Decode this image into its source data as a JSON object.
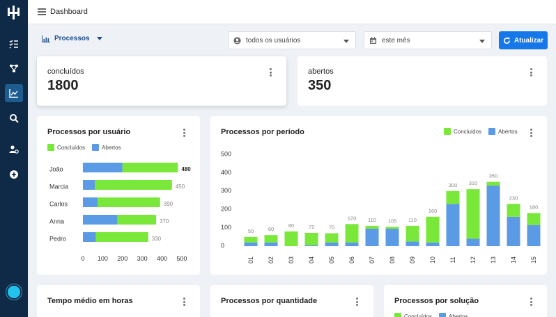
{
  "topbar": {
    "title": "Dashboard"
  },
  "filters": {
    "process_select": "Processos",
    "users_dropdown": "todos os usuários",
    "period_dropdown": "este mês",
    "refresh_label": "Atualizar"
  },
  "stats": [
    {
      "label": "concluídos",
      "value": "1800"
    },
    {
      "label": "abertos",
      "value": "350"
    }
  ],
  "legend": {
    "done": "Concluídos",
    "open": "Abertos"
  },
  "colors": {
    "done": "#79e83a",
    "open": "#5b9be6",
    "accent": "#1577e8",
    "sidebar": "#0e2a47"
  },
  "cards": {
    "by_user_title": "Processos por usuário",
    "by_period_title": "Processos por período",
    "avg_time_title": "Tempo médio em horas",
    "by_qty_title": "Processos por quantidade",
    "by_solution_title": "Processos por solução"
  },
  "chart_data": [
    {
      "type": "bar",
      "orientation": "horizontal",
      "stacked": true,
      "title": "Processos por usuário",
      "categories": [
        "João",
        "Marcia",
        "Carlos",
        "Anna",
        "Pedro"
      ],
      "series": [
        {
          "name": "Abertos",
          "values": [
            200,
            60,
            75,
            175,
            65
          ]
        },
        {
          "name": "Concluídos",
          "values": [
            280,
            390,
            315,
            195,
            265
          ]
        }
      ],
      "totals": [
        480,
        450,
        390,
        370,
        330
      ],
      "xticks": [
        0,
        100,
        200,
        300,
        400,
        500
      ],
      "xlim": [
        0,
        500
      ]
    },
    {
      "type": "bar",
      "orientation": "vertical",
      "stacked": true,
      "title": "Processos por período",
      "categories": [
        "01",
        "02",
        "03",
        "04",
        "05",
        "06",
        "07",
        "08",
        "09",
        "10",
        "11",
        "12",
        "13",
        "14",
        "15"
      ],
      "series": [
        {
          "name": "Abertos",
          "values": [
            20,
            20,
            0,
            5,
            20,
            20,
            95,
            95,
            25,
            20,
            230,
            40,
            330,
            160,
            115
          ]
        },
        {
          "name": "Concluídos",
          "values": [
            30,
            40,
            80,
            67,
            50,
            100,
            15,
            10,
            85,
            140,
            70,
            270,
            20,
            70,
            65
          ]
        }
      ],
      "totals": [
        50,
        60,
        80,
        72,
        70,
        120,
        110,
        105,
        110,
        160,
        300,
        310,
        350,
        230,
        180
      ],
      "yticks": [
        0,
        100,
        200,
        300,
        400,
        500
      ],
      "ylim": [
        0,
        500
      ]
    }
  ]
}
